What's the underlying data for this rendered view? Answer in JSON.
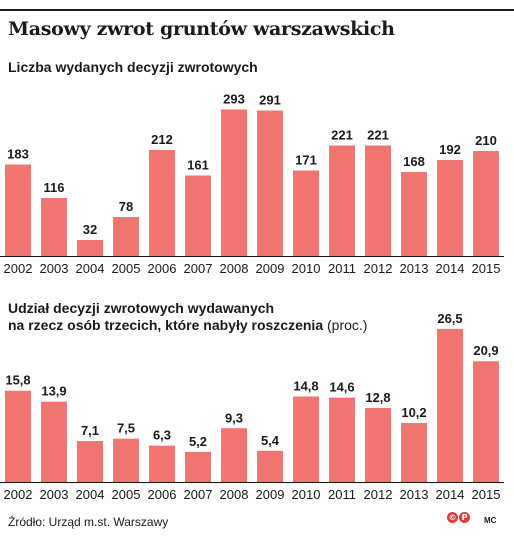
{
  "title": "Masowy zwrot gruntów warszawskich",
  "footer": {
    "source": "Źródło: Urząd m.st. Warszawy",
    "logo_marks": [
      "©",
      "P"
    ],
    "author": "MC"
  },
  "colors": {
    "bar": "#f07470",
    "text": "#1a1a1a",
    "axis": "#1a1a1a"
  },
  "chart_data": [
    {
      "type": "bar",
      "title": "Liczba wydanych decyzji zwrotowych",
      "categories": [
        "2002",
        "2003",
        "2004",
        "2005",
        "2006",
        "2007",
        "2008",
        "2009",
        "2010",
        "2011",
        "2012",
        "2013",
        "2014",
        "2015"
      ],
      "values": [
        183,
        116,
        32,
        78,
        212,
        161,
        293,
        291,
        171,
        221,
        221,
        168,
        192,
        210
      ],
      "labels": [
        "183",
        "116",
        "32",
        "78",
        "212",
        "161",
        "293",
        "291",
        "171",
        "221",
        "221",
        "168",
        "192",
        "210"
      ],
      "ylim": [
        0,
        300
      ],
      "grid": false,
      "legend": "none"
    },
    {
      "type": "bar",
      "title_lines": [
        "Udział decyzji zwrotowych wydawanych",
        "na rzecz osób trzecich, które nabyły roszczenia"
      ],
      "unit": "(proc.)",
      "categories": [
        "2002",
        "2003",
        "2004",
        "2005",
        "2006",
        "2007",
        "2008",
        "2009",
        "2010",
        "2011",
        "2012",
        "2013",
        "2014",
        "2015"
      ],
      "values": [
        15.8,
        13.9,
        7.1,
        7.5,
        6.3,
        5.2,
        9.3,
        5.4,
        14.8,
        14.6,
        12.8,
        10.2,
        26.5,
        20.9
      ],
      "labels": [
        "15,8",
        "13,9",
        "7,1",
        "7,5",
        "6,3",
        "5,2",
        "9,3",
        "5,4",
        "14,8",
        "14,6",
        "12,8",
        "10,2",
        "26,5",
        "20,9"
      ],
      "ylim": [
        0,
        27
      ],
      "grid": false,
      "legend": "none"
    }
  ]
}
